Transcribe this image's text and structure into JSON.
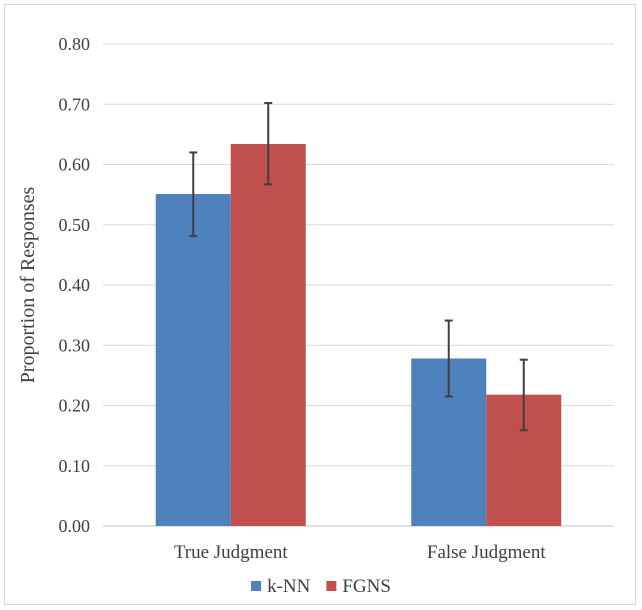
{
  "chart_data": {
    "type": "bar",
    "title": "",
    "xlabel": "",
    "ylabel": "Proportion of Responses",
    "categories": [
      "True Judgment",
      "False Judgment"
    ],
    "ylim": [
      0,
      0.8
    ],
    "yticks": [
      "0.00",
      "0.10",
      "0.20",
      "0.30",
      "0.40",
      "0.50",
      "0.60",
      "0.70",
      "0.80"
    ],
    "grid": true,
    "legend_position": "bottom",
    "series": [
      {
        "name": "k-NN",
        "color": "#4f81bd",
        "values": [
          0.551,
          0.278
        ],
        "error_low": [
          0.481,
          0.215
        ],
        "error_high": [
          0.62,
          0.341
        ]
      },
      {
        "name": "FGNS",
        "color": "#c0504d",
        "values": [
          0.634,
          0.218
        ],
        "error_low": [
          0.567,
          0.159
        ],
        "error_high": [
          0.702,
          0.276
        ]
      }
    ]
  }
}
